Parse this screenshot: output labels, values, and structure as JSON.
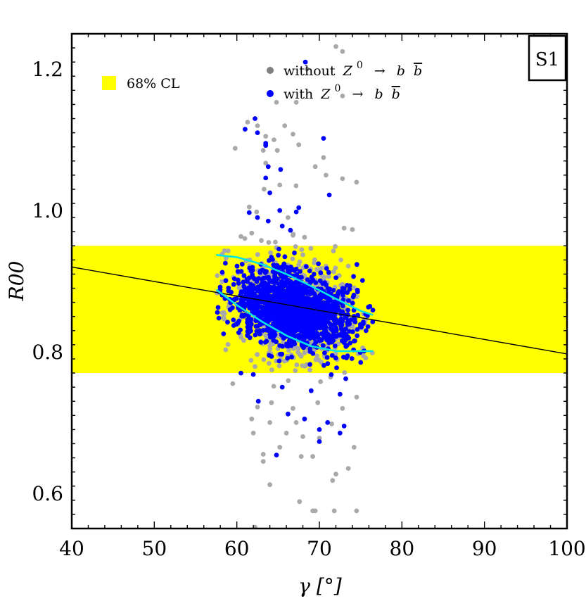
{
  "chart_data": {
    "type": "scatter",
    "tag": "S1",
    "xlabel": "γ  [°]",
    "ylabel": "R00",
    "xlim": [
      40,
      100
    ],
    "ylim": [
      0.55,
      1.25
    ],
    "xticks": [
      40,
      50,
      60,
      70,
      80,
      90,
      100
    ],
    "yticks": [
      0.6,
      0.8,
      1.0,
      1.2
    ],
    "xtick_labels": [
      "40",
      "50",
      "60",
      "70",
      "80",
      "90",
      "100"
    ],
    "ytick_labels": [
      "0.6",
      "0.8",
      "1.0",
      "1.2"
    ],
    "band": {
      "label": "68% CL",
      "ymin": 0.77,
      "ymax": 0.95,
      "color": "#ffff00"
    },
    "legend": [
      {
        "name": "without Z0 → b b̄",
        "text": "without",
        "color": "#808080"
      },
      {
        "name": "with Z0 → b b̄",
        "text": "with",
        "color": "#0000ff"
      }
    ],
    "legend_math": {
      "Z": "Z",
      "sup": "0",
      "arrow": "→",
      "b": "b",
      "bbar": "b"
    },
    "fit_line": {
      "x": [
        40,
        100
      ],
      "y": [
        0.92,
        0.797
      ],
      "color": "#000000"
    },
    "upper_contour": {
      "x": [
        57.5,
        60,
        63,
        66,
        69,
        72,
        75,
        76.5
      ],
      "y": [
        0.937,
        0.934,
        0.924,
        0.91,
        0.893,
        0.875,
        0.858,
        0.852
      ],
      "color": "#00e5e5"
    },
    "lower_contour": {
      "x": [
        57.5,
        60,
        63,
        66,
        69,
        72,
        75,
        76.5
      ],
      "y": [
        0.888,
        0.866,
        0.843,
        0.823,
        0.808,
        0.801,
        0.801,
        0.801
      ],
      "color": "#00e5e5"
    },
    "series": [
      {
        "name": "without Z0 → b b̄",
        "color": "#a9a9a9",
        "cloud": {
          "x_center": 67,
          "y_center": 0.86,
          "n": 700,
          "x_sd": 3.8,
          "y_sd": 0.038,
          "slope": -0.0022,
          "seed": 11
        },
        "points": [
          {
            "x": 72.0,
            "y": 1.232
          },
          {
            "x": 72.8,
            "y": 1.225
          },
          {
            "x": 68.5,
            "y": 1.2
          },
          {
            "x": 64.8,
            "y": 1.153
          },
          {
            "x": 67.2,
            "y": 1.153
          },
          {
            "x": 72.8,
            "y": 1.162
          },
          {
            "x": 61.3,
            "y": 1.125
          },
          {
            "x": 62.5,
            "y": 1.12
          },
          {
            "x": 65.8,
            "y": 1.12
          },
          {
            "x": 63.5,
            "y": 1.105
          },
          {
            "x": 64.5,
            "y": 1.1
          },
          {
            "x": 66.8,
            "y": 1.108
          },
          {
            "x": 59.8,
            "y": 1.088
          },
          {
            "x": 63.2,
            "y": 1.085
          },
          {
            "x": 64.9,
            "y": 1.085
          },
          {
            "x": 67.5,
            "y": 1.093
          },
          {
            "x": 70.5,
            "y": 1.075
          },
          {
            "x": 63.5,
            "y": 1.067
          },
          {
            "x": 69.5,
            "y": 1.062
          },
          {
            "x": 70.8,
            "y": 1.05
          },
          {
            "x": 63.3,
            "y": 1.03
          },
          {
            "x": 65.2,
            "y": 1.036
          },
          {
            "x": 74.5,
            "y": 1.04
          },
          {
            "x": 72.8,
            "y": 1.045
          },
          {
            "x": 61.5,
            "y": 1.005
          },
          {
            "x": 62.4,
            "y": 0.998
          },
          {
            "x": 66.2,
            "y": 0.99
          },
          {
            "x": 73.0,
            "y": 0.975
          },
          {
            "x": 74.0,
            "y": 0.973
          },
          {
            "x": 61.8,
            "y": 0.968
          },
          {
            "x": 66.8,
            "y": 0.965
          },
          {
            "x": 68.2,
            "y": 0.962
          },
          {
            "x": 59.5,
            "y": 0.755
          },
          {
            "x": 62.5,
            "y": 0.722
          },
          {
            "x": 64.2,
            "y": 0.728
          },
          {
            "x": 66.8,
            "y": 0.72
          },
          {
            "x": 69.8,
            "y": 0.728
          },
          {
            "x": 72.8,
            "y": 0.72
          },
          {
            "x": 61.8,
            "y": 0.705
          },
          {
            "x": 64.0,
            "y": 0.7
          },
          {
            "x": 67.2,
            "y": 0.7
          },
          {
            "x": 71.5,
            "y": 0.698
          },
          {
            "x": 62.0,
            "y": 0.685
          },
          {
            "x": 66.0,
            "y": 0.685
          },
          {
            "x": 68.0,
            "y": 0.68
          },
          {
            "x": 70.0,
            "y": 0.678
          },
          {
            "x": 74.2,
            "y": 0.665
          },
          {
            "x": 63.2,
            "y": 0.655
          },
          {
            "x": 63.2,
            "y": 0.645
          },
          {
            "x": 67.8,
            "y": 0.652
          },
          {
            "x": 69.2,
            "y": 0.652
          },
          {
            "x": 72.0,
            "y": 0.627
          },
          {
            "x": 71.6,
            "y": 0.618
          },
          {
            "x": 64.0,
            "y": 0.612
          },
          {
            "x": 67.6,
            "y": 0.588
          },
          {
            "x": 69.5,
            "y": 0.575
          },
          {
            "x": 71.8,
            "y": 0.575
          },
          {
            "x": 74.5,
            "y": 0.575
          },
          {
            "x": 62.2,
            "y": 0.552
          },
          {
            "x": 65.2,
            "y": 0.665
          },
          {
            "x": 69.2,
            "y": 0.575
          },
          {
            "x": 73.5,
            "y": 0.635
          }
        ]
      },
      {
        "name": "with Z0 → b b̄",
        "color": "#0000ff",
        "cloud": {
          "x_center": 66.8,
          "y_center": 0.861,
          "n": 1500,
          "x_sd": 3.6,
          "y_sd": 0.026,
          "slope": -0.0024,
          "seed": 7
        },
        "points": [
          {
            "x": 68.3,
            "y": 1.21
          },
          {
            "x": 62.2,
            "y": 1.13
          },
          {
            "x": 61.0,
            "y": 1.115
          },
          {
            "x": 62.5,
            "y": 1.11
          },
          {
            "x": 63.5,
            "y": 1.095
          },
          {
            "x": 70.5,
            "y": 1.102
          },
          {
            "x": 63.5,
            "y": 1.092
          },
          {
            "x": 63.8,
            "y": 1.062
          },
          {
            "x": 65.3,
            "y": 1.058
          },
          {
            "x": 63.5,
            "y": 1.046
          },
          {
            "x": 64.0,
            "y": 1.025
          },
          {
            "x": 71.2,
            "y": 1.022
          },
          {
            "x": 65.2,
            "y": 1.0
          },
          {
            "x": 67.5,
            "y": 1.004
          },
          {
            "x": 61.5,
            "y": 0.997
          },
          {
            "x": 62.5,
            "y": 0.99
          },
          {
            "x": 67.2,
            "y": 0.998
          },
          {
            "x": 63.8,
            "y": 0.985
          },
          {
            "x": 65.5,
            "y": 0.978
          },
          {
            "x": 66.5,
            "y": 0.972
          },
          {
            "x": 62.6,
            "y": 0.73
          },
          {
            "x": 65.5,
            "y": 0.75
          },
          {
            "x": 69.0,
            "y": 0.745
          },
          {
            "x": 72.5,
            "y": 0.74
          },
          {
            "x": 66.2,
            "y": 0.712
          },
          {
            "x": 68.2,
            "y": 0.705
          },
          {
            "x": 71.0,
            "y": 0.7
          },
          {
            "x": 73.0,
            "y": 0.695
          },
          {
            "x": 70.0,
            "y": 0.69
          },
          {
            "x": 72.5,
            "y": 0.685
          },
          {
            "x": 70.0,
            "y": 0.673
          },
          {
            "x": 64.8,
            "y": 0.654
          },
          {
            "x": 75.0,
            "y": 0.785
          },
          {
            "x": 60.5,
            "y": 0.77
          },
          {
            "x": 62.0,
            "y": 0.768
          },
          {
            "x": 73.2,
            "y": 0.762
          }
        ]
      }
    ]
  }
}
